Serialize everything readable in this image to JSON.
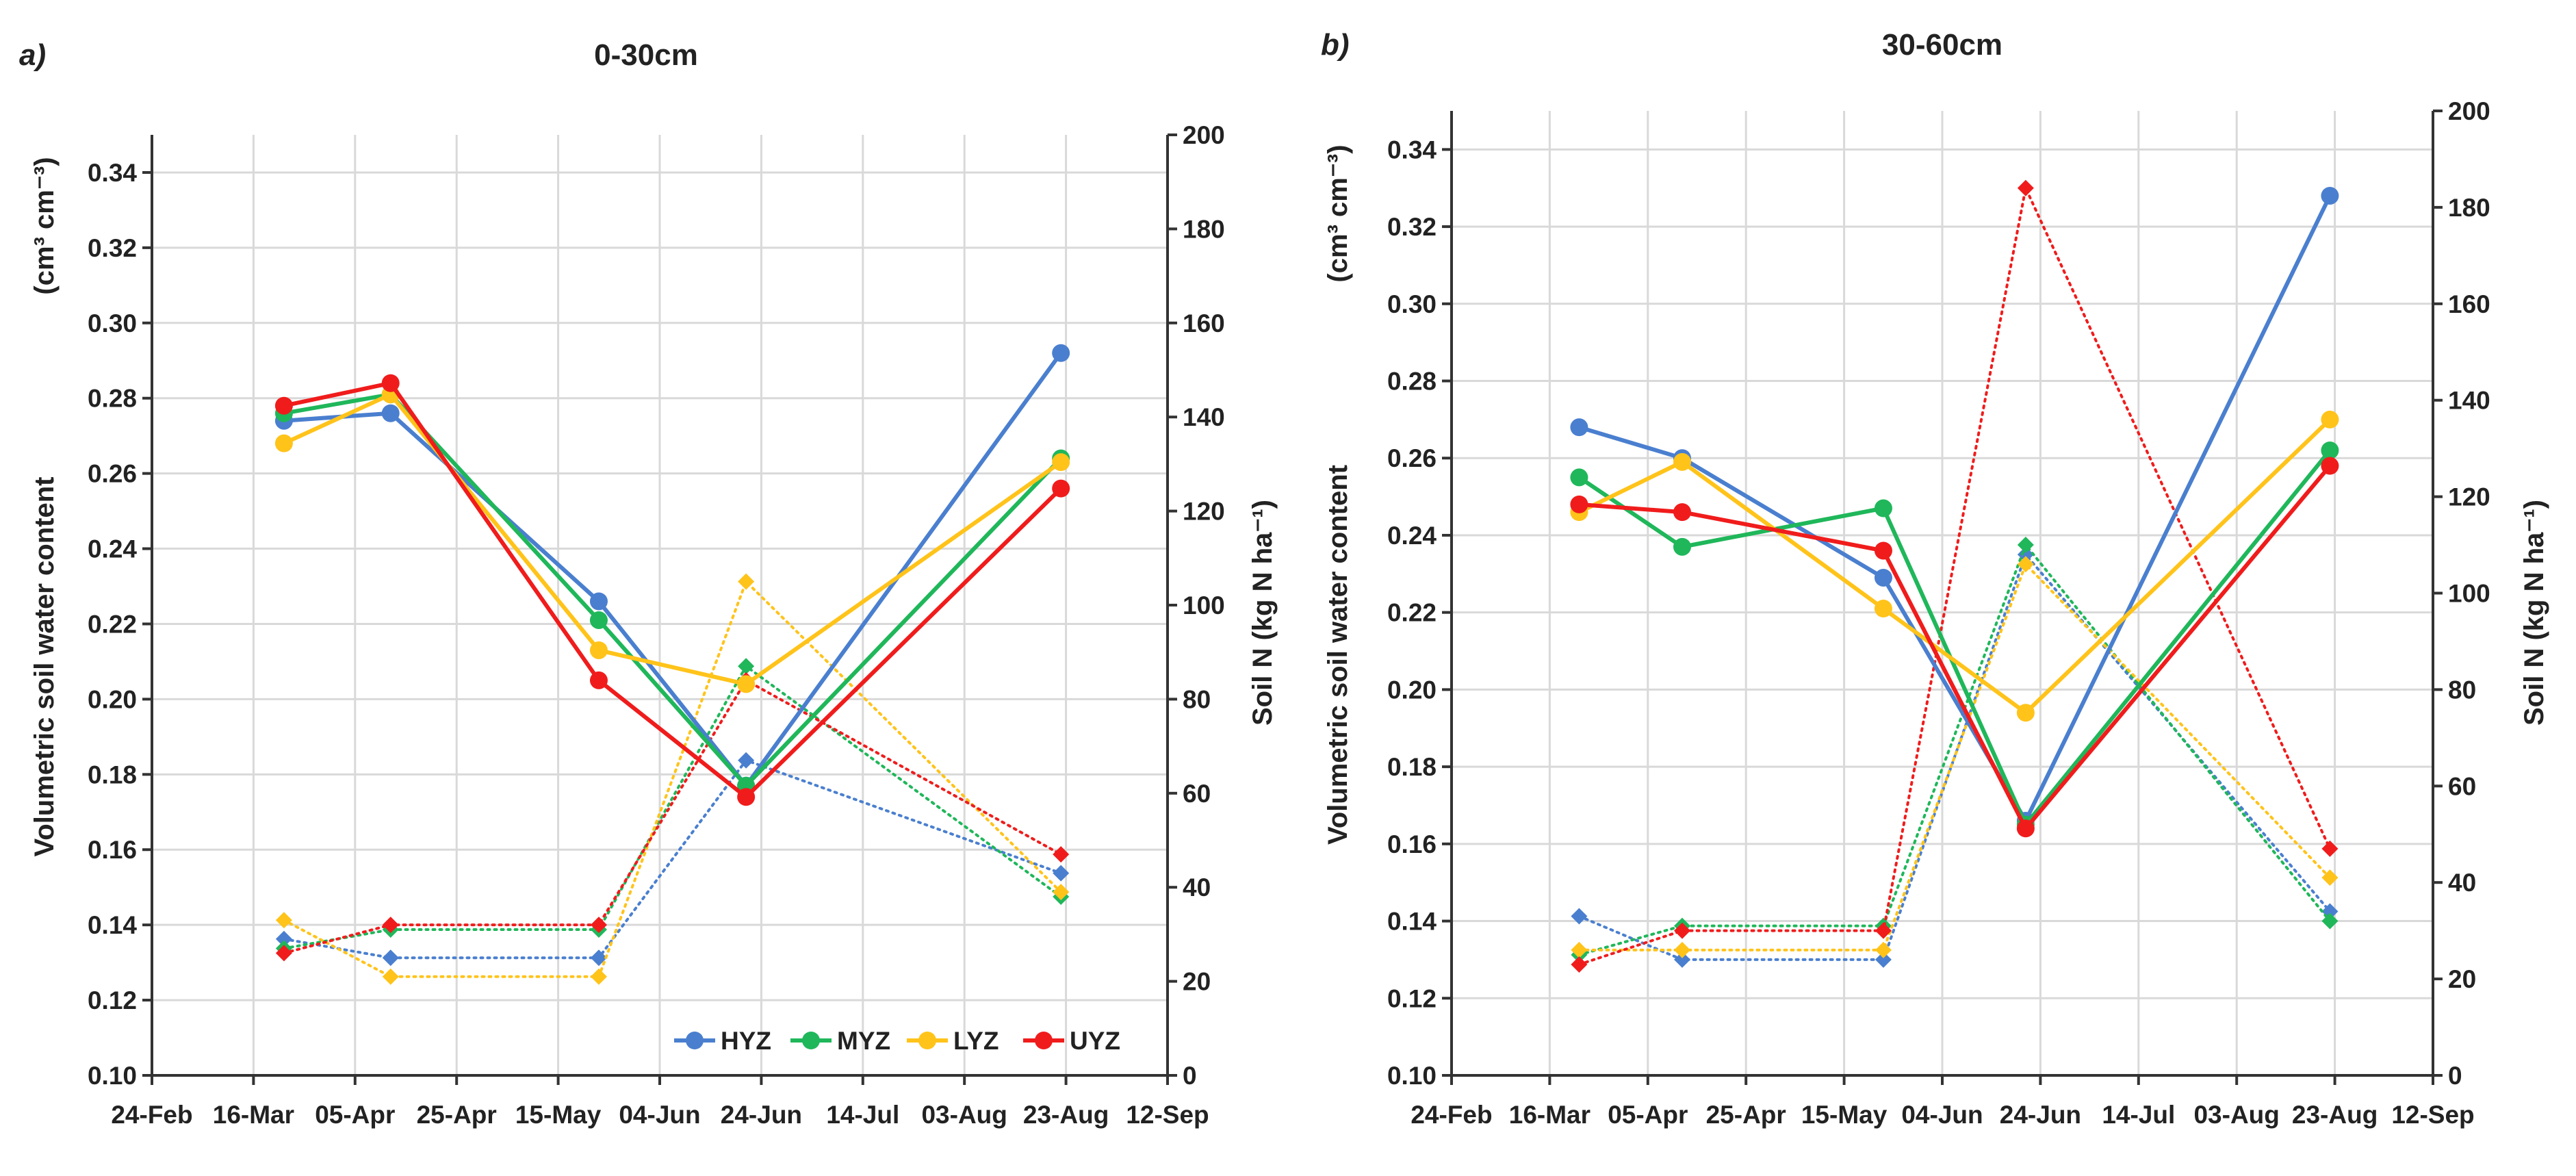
{
  "colors": {
    "HYZ": "#4a7fcf",
    "MYZ": "#1fb75a",
    "LYZ": "#ffc31a",
    "UYZ": "#f01c1c"
  },
  "legend": [
    "HYZ",
    "MYZ",
    "LYZ",
    "UYZ"
  ],
  "chart_data": [
    {
      "type": "line",
      "panel_label": "a)",
      "title": "0-30cm",
      "ylabel_left": "Volumetric soil water content",
      "ylabel_left_unit": "(cm³ cm⁻³)",
      "ylabel_right": "Soil N (kg N ha⁻¹)",
      "x_ticks": [
        "24-Feb",
        "16-Mar",
        "05-Apr",
        "25-Apr",
        "15-May",
        "04-Jun",
        "24-Jun",
        "14-Jul",
        "03-Aug",
        "23-Aug",
        "12-Sep"
      ],
      "x_days": [
        0,
        20,
        40,
        60,
        80,
        100,
        120,
        140,
        160,
        180,
        200
      ],
      "y_left_ticks": [
        "0.10",
        "0.12",
        "0.14",
        "0.16",
        "0.18",
        "0.20",
        "0.22",
        "0.24",
        "0.26",
        "0.28",
        "0.30",
        "0.32",
        "0.34"
      ],
      "y_left_lim": [
        0.1,
        0.35
      ],
      "y_right_ticks": [
        "0",
        "20",
        "40",
        "60",
        "80",
        "100",
        "120",
        "140",
        "160",
        "180",
        "200"
      ],
      "y_right_lim": [
        0,
        200
      ],
      "sample_days": [
        26,
        47,
        88,
        117,
        179
      ],
      "series_swc": [
        {
          "name": "HYZ",
          "values": [
            0.274,
            0.276,
            0.226,
            0.177,
            0.292
          ]
        },
        {
          "name": "MYZ",
          "values": [
            0.276,
            0.281,
            0.221,
            0.177,
            0.264
          ]
        },
        {
          "name": "LYZ",
          "values": [
            0.268,
            0.281,
            0.213,
            0.204,
            0.263
          ]
        },
        {
          "name": "UYZ",
          "values": [
            0.278,
            0.284,
            0.205,
            0.174,
            0.256
          ]
        }
      ],
      "series_n": [
        {
          "name": "HYZ",
          "values": [
            29,
            25,
            25,
            67,
            43
          ]
        },
        {
          "name": "MYZ",
          "values": [
            27,
            31,
            31,
            87,
            38
          ]
        },
        {
          "name": "LYZ",
          "values": [
            33,
            21,
            21,
            105,
            39
          ]
        },
        {
          "name": "UYZ",
          "values": [
            26,
            32,
            32,
            84,
            47
          ]
        }
      ]
    },
    {
      "type": "line",
      "panel_label": "b)",
      "title": "30-60cm",
      "ylabel_left": "Volumetric soil water content",
      "ylabel_left_unit": "(cm³ cm⁻³)",
      "ylabel_right": "Soil N (kg N ha⁻¹)",
      "x_ticks": [
        "24-Feb",
        "16-Mar",
        "05-Apr",
        "25-Apr",
        "15-May",
        "04-Jun",
        "24-Jun",
        "14-Jul",
        "03-Aug",
        "23-Aug",
        "12-Sep"
      ],
      "x_days": [
        0,
        20,
        40,
        60,
        80,
        100,
        120,
        140,
        160,
        180,
        200
      ],
      "y_left_ticks": [
        "0.10",
        "0.12",
        "0.14",
        "0.16",
        "0.18",
        "0.20",
        "0.22",
        "0.24",
        "0.26",
        "0.28",
        "0.30",
        "0.32",
        "0.34"
      ],
      "y_left_lim": [
        0.1,
        0.35
      ],
      "y_right_ticks": [
        "0",
        "20",
        "40",
        "60",
        "80",
        "100",
        "120",
        "140",
        "160",
        "180",
        "200"
      ],
      "y_right_lim": [
        0,
        200
      ],
      "sample_days": [
        26,
        47,
        88,
        117,
        179
      ],
      "series_swc": [
        {
          "name": "HYZ",
          "values": [
            0.268,
            0.26,
            0.229,
            0.166,
            0.328
          ]
        },
        {
          "name": "MYZ",
          "values": [
            0.255,
            0.237,
            0.247,
            0.165,
            0.262
          ]
        },
        {
          "name": "LYZ",
          "values": [
            0.246,
            0.259,
            0.221,
            0.194,
            0.27
          ]
        },
        {
          "name": "UYZ",
          "values": [
            0.248,
            0.246,
            0.236,
            0.164,
            0.258
          ]
        }
      ],
      "series_n": [
        {
          "name": "HYZ",
          "values": [
            33,
            24,
            24,
            108,
            34
          ]
        },
        {
          "name": "MYZ",
          "values": [
            25,
            31,
            31,
            110,
            32
          ]
        },
        {
          "name": "LYZ",
          "values": [
            26,
            26,
            26,
            106,
            41
          ]
        },
        {
          "name": "UYZ",
          "values": [
            23,
            30,
            30,
            184,
            47
          ]
        }
      ]
    }
  ]
}
